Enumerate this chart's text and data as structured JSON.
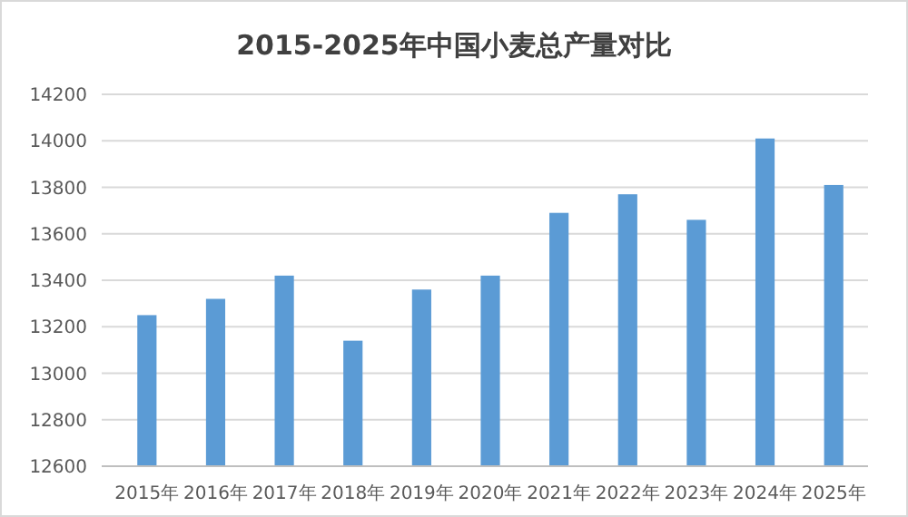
{
  "chart_data": {
    "type": "bar",
    "title": "2015-2025年中国小麦总产量对比",
    "categories": [
      "2015年",
      "2016年",
      "2017年",
      "2018年",
      "2019年",
      "2020年",
      "2021年",
      "2022年",
      "2023年",
      "2024年",
      "2025年"
    ],
    "values": [
      13250,
      13320,
      13420,
      13140,
      13360,
      13420,
      13690,
      13770,
      13660,
      14010,
      13810
    ],
    "color": "#5b9bd5",
    "ylim": [
      12600,
      14200
    ],
    "yticks": [
      12600,
      12800,
      13000,
      13200,
      13400,
      13600,
      13800,
      14000,
      14200
    ],
    "grid": "y"
  }
}
